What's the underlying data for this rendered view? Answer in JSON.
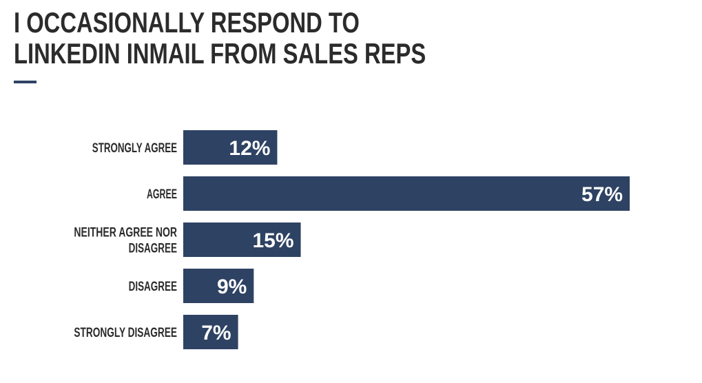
{
  "title": {
    "line1": "I OCCASIONALLY RESPOND TO",
    "line2": "LINKEDIN INMAIL FROM SALES REPS"
  },
  "colors": {
    "bar": "#2e4263",
    "accent": "#2e4263",
    "label": "#2b2b2b",
    "value_text": "#ffffff"
  },
  "chart_data": {
    "type": "bar",
    "orientation": "horizontal",
    "categories": [
      [
        "STRONGLY AGREE"
      ],
      [
        "AGREE"
      ],
      [
        "NEITHER AGREE NOR",
        "DISAGREE"
      ],
      [
        "DISAGREE"
      ],
      [
        "STRONGLY DISAGREE"
      ]
    ],
    "values": [
      12,
      57,
      15,
      9,
      7
    ],
    "value_labels": [
      "12%",
      "57%",
      "15%",
      "9%",
      "7%"
    ],
    "unit": "%",
    "grid": false,
    "legend": "none"
  }
}
